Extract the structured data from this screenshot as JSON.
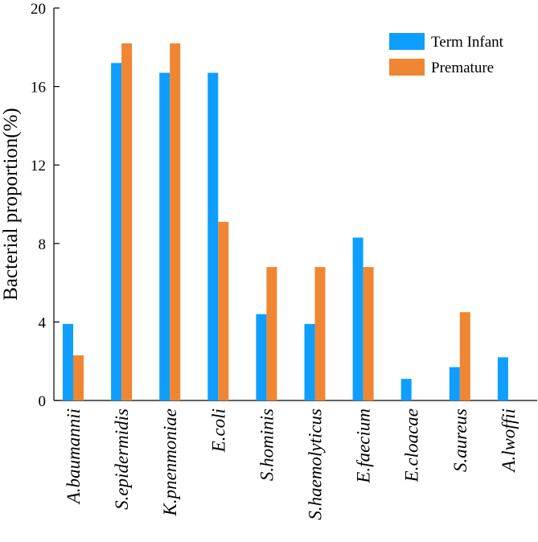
{
  "chart_data": {
    "type": "bar",
    "title": "",
    "xlabel": "",
    "ylabel": "Bacterial proportion(%)",
    "ylim": [
      0,
      20
    ],
    "yticks": [
      "0",
      "4",
      "8",
      "12",
      "16",
      "20"
    ],
    "legend_position": "top-right",
    "categories": [
      "A.baumannii",
      "S.epidermidis",
      "K.pnenmoniae",
      "E.coli",
      "S.hominis",
      "S.haemolyticus",
      "E.faecium",
      "E.cloacae",
      "S.aureus",
      "A.lwoffii"
    ],
    "series": [
      {
        "name": "Term Infant",
        "color": "#0E9EFF",
        "values": [
          3.9,
          17.2,
          16.7,
          16.7,
          4.4,
          3.9,
          8.3,
          1.1,
          1.7,
          2.2
        ]
      },
      {
        "name": "Premature",
        "color": "#EF8633",
        "values": [
          2.3,
          18.2,
          18.2,
          9.1,
          6.8,
          6.8,
          6.8,
          0,
          4.5,
          0
        ]
      }
    ]
  }
}
